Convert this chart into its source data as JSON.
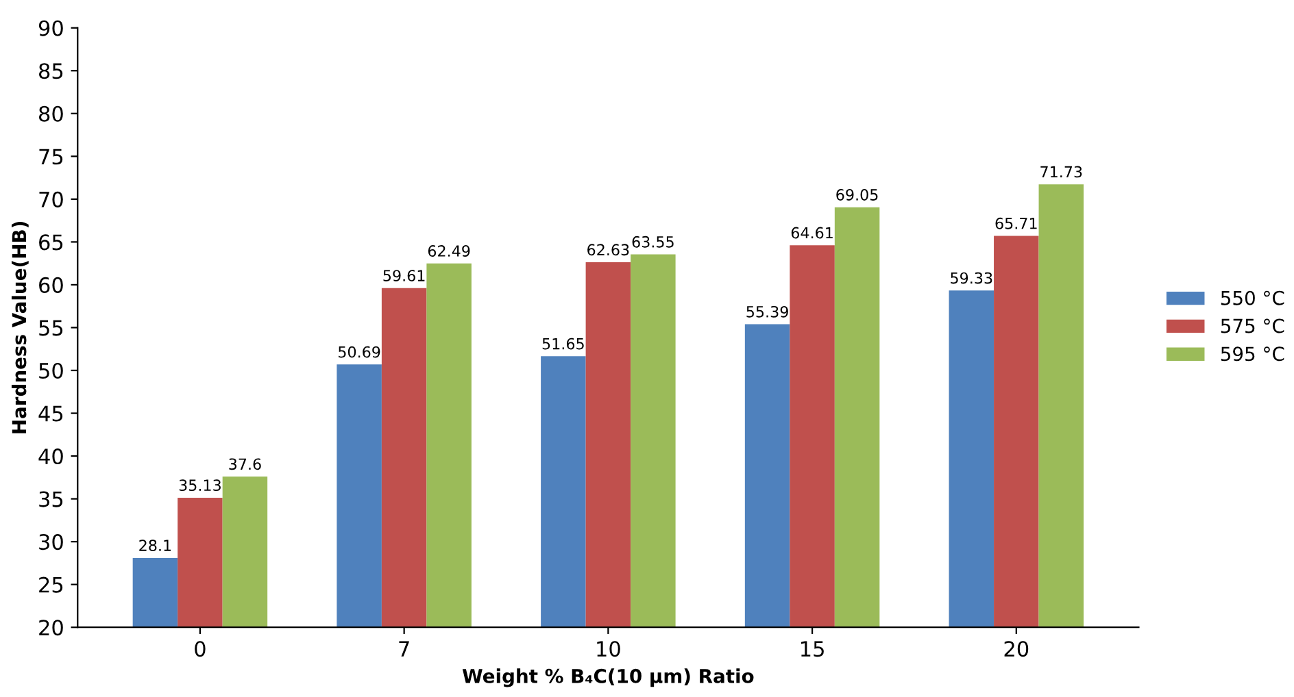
{
  "chart_data": {
    "type": "bar",
    "xlabel": "Weight % B₄C(10 µm) Ratio",
    "ylabel": "Hardness Value(HB)",
    "categories": [
      "0",
      "7",
      "10",
      "15",
      "20"
    ],
    "series": [
      {
        "name": "550 °C",
        "color": "#4f81bd",
        "values": [
          28.1,
          50.69,
          51.65,
          55.39,
          59.33
        ]
      },
      {
        "name": "575 °C",
        "color": "#c0504d",
        "values": [
          35.13,
          59.61,
          62.63,
          64.61,
          65.71
        ]
      },
      {
        "name": "595 °C",
        "color": "#9bbb59",
        "values": [
          37.6,
          62.49,
          63.55,
          69.05,
          71.73
        ]
      }
    ],
    "ylim": [
      20,
      90
    ],
    "yticks": [
      20,
      25,
      30,
      35,
      40,
      45,
      50,
      55,
      60,
      65,
      70,
      75,
      80,
      85,
      90
    ],
    "data_labels": true,
    "grid": false,
    "legend": "right"
  }
}
